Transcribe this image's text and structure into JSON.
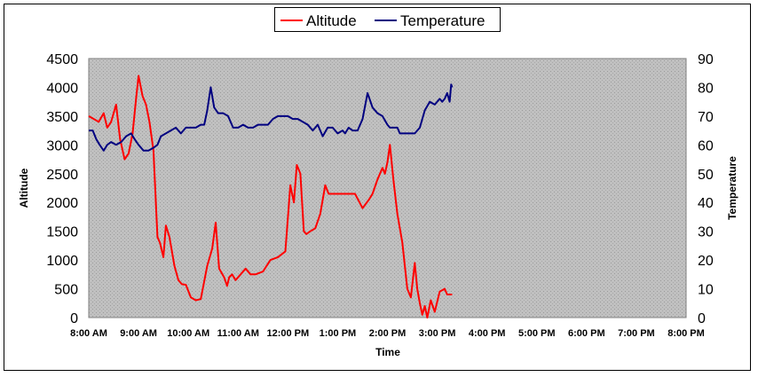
{
  "chart_data": {
    "type": "line",
    "title": "",
    "xlabel": "Time",
    "ylabel_left": "Altitude",
    "ylabel_right": "Temperature",
    "x_ticks": [
      "8:00 AM",
      "9:00 AM",
      "10:00 AM",
      "11:00 AM",
      "12:00 PM",
      "1:00 PM",
      "2:00 PM",
      "3:00 PM",
      "4:00 PM",
      "5:00 PM",
      "6:00 PM",
      "7:00 PM",
      "8:00 PM"
    ],
    "xlim": [
      8,
      20
    ],
    "ylim_left": [
      0,
      4500
    ],
    "ylim_right": [
      0,
      90
    ],
    "y_ticks_left": [
      0,
      500,
      1000,
      1500,
      2000,
      2500,
      3000,
      3500,
      4000,
      4500
    ],
    "y_ticks_right": [
      0,
      10,
      20,
      30,
      40,
      50,
      60,
      70,
      80,
      90
    ],
    "legend_position": "top-center",
    "plot_background": "#c0c0c0",
    "series": [
      {
        "name": "Altitude",
        "axis": "left",
        "color": "#ff0000",
        "x": [
          8.0,
          8.1,
          8.2,
          8.3,
          8.37,
          8.45,
          8.55,
          8.63,
          8.72,
          8.8,
          8.88,
          8.95,
          9.0,
          9.08,
          9.15,
          9.22,
          9.3,
          9.38,
          9.43,
          9.5,
          9.55,
          9.62,
          9.72,
          9.8,
          9.87,
          9.95,
          10.05,
          10.15,
          10.25,
          10.38,
          10.48,
          10.55,
          10.62,
          10.72,
          10.78,
          10.82,
          10.88,
          10.95,
          11.05,
          11.15,
          11.25,
          11.35,
          11.5,
          11.65,
          11.8,
          11.95,
          12.05,
          12.12,
          12.18,
          12.25,
          12.32,
          12.37,
          12.45,
          12.55,
          12.65,
          12.75,
          12.82,
          12.9,
          13.0,
          13.1,
          13.2,
          13.35,
          13.5,
          13.63,
          13.7,
          13.8,
          13.9,
          13.95,
          14.0,
          14.05,
          14.12,
          14.2,
          14.3,
          14.4,
          14.47,
          14.55,
          14.6,
          14.65,
          14.7,
          14.75,
          14.8,
          14.87,
          14.95,
          15.05,
          15.15,
          15.2,
          15.3
        ],
        "values": [
          3500,
          3450,
          3400,
          3550,
          3300,
          3400,
          3700,
          3100,
          2750,
          2850,
          3200,
          3800,
          4200,
          3850,
          3700,
          3400,
          2900,
          1400,
          1300,
          1050,
          1600,
          1400,
          900,
          650,
          580,
          570,
          350,
          300,
          320,
          900,
          1200,
          1650,
          850,
          700,
          550,
          700,
          750,
          650,
          750,
          850,
          750,
          750,
          800,
          1000,
          1050,
          1150,
          2300,
          2000,
          2650,
          2500,
          1500,
          1450,
          1500,
          1550,
          1800,
          2300,
          2150,
          2150,
          2150,
          2150,
          2150,
          2150,
          1900,
          2050,
          2150,
          2400,
          2600,
          2500,
          2700,
          3000,
          2400,
          1800,
          1300,
          500,
          350,
          950,
          500,
          250,
          50,
          200,
          0,
          300,
          100,
          450,
          500,
          400,
          400
        ]
      },
      {
        "name": "Temperature",
        "axis": "right",
        "color": "#000080",
        "x": [
          8.0,
          8.08,
          8.15,
          8.22,
          8.3,
          8.37,
          8.45,
          8.55,
          8.65,
          8.75,
          8.85,
          8.92,
          9.0,
          9.1,
          9.2,
          9.3,
          9.38,
          9.45,
          9.55,
          9.65,
          9.75,
          9.85,
          9.95,
          10.05,
          10.15,
          10.25,
          10.32,
          10.38,
          10.45,
          10.52,
          10.6,
          10.7,
          10.8,
          10.9,
          11.0,
          11.1,
          11.2,
          11.3,
          11.4,
          11.5,
          11.6,
          11.7,
          11.8,
          11.9,
          12.0,
          12.1,
          12.2,
          12.3,
          12.4,
          12.5,
          12.6,
          12.7,
          12.8,
          12.9,
          13.0,
          13.1,
          13.15,
          13.22,
          13.3,
          13.4,
          13.5,
          13.6,
          13.7,
          13.8,
          13.9,
          14.0,
          14.05,
          14.1,
          14.2,
          14.25,
          14.3,
          14.35,
          14.45,
          14.55,
          14.65,
          14.75,
          14.85,
          14.95,
          15.05,
          15.1,
          15.15,
          15.2,
          15.25,
          15.28,
          15.3
        ],
        "values": [
          65,
          65,
          62,
          60,
          58,
          60,
          61,
          60,
          61,
          63,
          64,
          62,
          60,
          58,
          58,
          59,
          60,
          63,
          64,
          65,
          66,
          64,
          66,
          66,
          66,
          67,
          67,
          72,
          80,
          73,
          71,
          71,
          70,
          66,
          66,
          67,
          66,
          66,
          67,
          67,
          67,
          69,
          70,
          70,
          70,
          69,
          69,
          68,
          67,
          65,
          67,
          63,
          66,
          66,
          64,
          65,
          64,
          66,
          65,
          65,
          69,
          78,
          73,
          71,
          70,
          67,
          66,
          66,
          66,
          64,
          64,
          64,
          64,
          64,
          66,
          72,
          75,
          74,
          76,
          75,
          76,
          78,
          75,
          81,
          80
        ]
      }
    ]
  }
}
